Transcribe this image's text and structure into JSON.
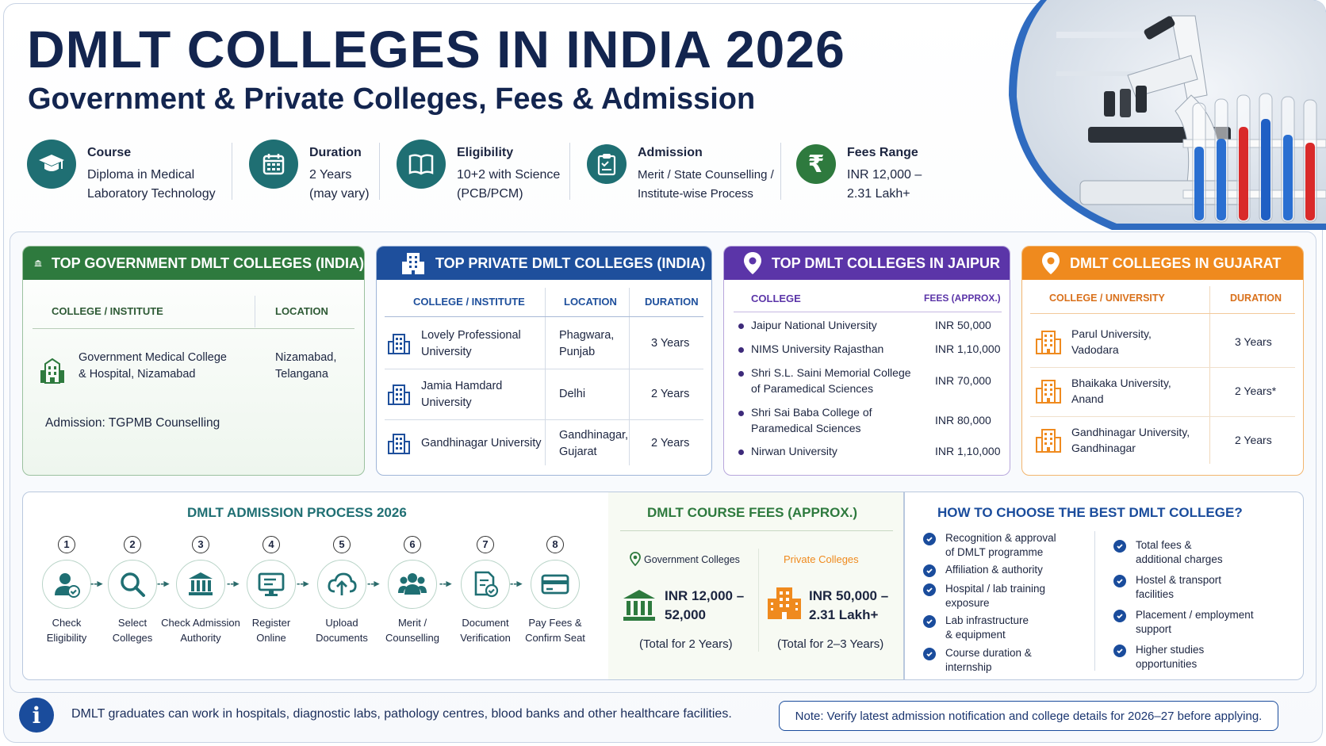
{
  "header": {
    "title": "DMLT COLLEGES IN INDIA 2026",
    "subtitle": "Government & Private Colleges, Fees & Admission"
  },
  "stats": [
    {
      "label": "Course",
      "line1": "Diploma in Medical",
      "line2": "Laboratory Technology",
      "icon": "graduation-cap-icon"
    },
    {
      "label": "Duration",
      "line1": "2 Years",
      "line2": "(may vary)",
      "icon": "calendar-icon"
    },
    {
      "label": "Eligibility",
      "line1": "10+2 with Science",
      "line2": "(PCB/PCM)",
      "icon": "book-icon"
    },
    {
      "label": "Admission",
      "line1": "Merit / State Counselling /",
      "line2": "Institute-wise Process",
      "icon": "clipboard-icon"
    },
    {
      "label": "Fees Range",
      "line1": "INR 12,000 –",
      "line2": "2.31 Lakh+",
      "icon": "rupee-icon"
    }
  ],
  "gov_card": {
    "title": "TOP GOVERNMENT DMLT COLLEGES (INDIA)",
    "col1": "COLLEGE / INSTITUTE",
    "col2": "LOCATION",
    "college_l1": "Government Medical College",
    "college_l2": "& Hospital, Nizamabad",
    "loc_l1": "Nizamabad,",
    "loc_l2": "Telangana",
    "admission": "Admission: TGPMB Counselling",
    "color": "#2e7a3e"
  },
  "private_card": {
    "title": "TOP PRIVATE DMLT COLLEGES (INDIA)",
    "col1": "COLLEGE / INSTITUTE",
    "col2": "LOCATION",
    "col3": "DURATION",
    "rows": [
      {
        "c1": "Lovely Professional",
        "c2": "University",
        "l1": "Phagwara,",
        "l2": "Punjab",
        "d": "3 Years"
      },
      {
        "c1": "Jamia Hamdard",
        "c2": "University",
        "l1": "Delhi",
        "l2": "",
        "d": "2 Years"
      },
      {
        "c1": "Gandhinagar University",
        "c2": "",
        "l1": "Gandhinagar,",
        "l2": "Gujarat",
        "d": "2 Years"
      }
    ],
    "color": "#1e4f9c"
  },
  "jaipur_card": {
    "title": "TOP DMLT COLLEGES IN JAIPUR",
    "col1": "COLLEGE",
    "col2": "FEES (APPROX.)",
    "rows": [
      {
        "n1": "Jaipur National University",
        "n2": "",
        "fee": "INR 50,000"
      },
      {
        "n1": "NIMS University Rajasthan",
        "n2": "",
        "fee": "INR 1,10,000"
      },
      {
        "n1": "Shri S.L. Saini Memorial College",
        "n2": "of Paramedical Sciences",
        "fee": "INR 70,000"
      },
      {
        "n1": "Shri Sai Baba College of",
        "n2": "Paramedical Sciences",
        "fee": "INR 80,000"
      },
      {
        "n1": "Nirwan University",
        "n2": "",
        "fee": "INR 1,10,000"
      }
    ],
    "color": "#5b35a8"
  },
  "gujarat_card": {
    "title": "DMLT COLLEGES IN GUJARAT",
    "col1": "COLLEGE / UNIVERSITY",
    "col2": "DURATION",
    "rows": [
      {
        "c1": "Parul University,",
        "c2": "Vadodara",
        "d": "3 Years"
      },
      {
        "c1": "Bhaikaka University,",
        "c2": "Anand",
        "d": "2 Years*"
      },
      {
        "c1": "Gandhinagar University,",
        "c2": "Gandhinagar",
        "d": "2 Years"
      }
    ],
    "color": "#ef8a1e"
  },
  "process": {
    "title": "DMLT ADMISSION PROCESS 2026",
    "steps": [
      {
        "n": "1",
        "l1": "Check",
        "l2": "Eligibility",
        "icon": "user-check-icon"
      },
      {
        "n": "2",
        "l1": "Select",
        "l2": "Colleges",
        "icon": "search-icon"
      },
      {
        "n": "3",
        "l1": "Check Admission",
        "l2": "Authority",
        "icon": "institution-icon"
      },
      {
        "n": "4",
        "l1": "Register",
        "l2": "Online",
        "icon": "monitor-icon"
      },
      {
        "n": "5",
        "l1": "Upload",
        "l2": "Documents",
        "icon": "cloud-upload-icon"
      },
      {
        "n": "6",
        "l1": "Merit /",
        "l2": "Counselling",
        "icon": "group-icon"
      },
      {
        "n": "7",
        "l1": "Document",
        "l2": "Verification",
        "icon": "document-check-icon"
      },
      {
        "n": "8",
        "l1": "Pay Fees &",
        "l2": "Confirm Seat",
        "icon": "card-icon"
      }
    ]
  },
  "fees": {
    "title": "DMLT COURSE FEES (APPROX.)",
    "gov_label": "Government Colleges",
    "gov_l1": "INR 12,000 –",
    "gov_l2": "52,000",
    "gov_note": "(Total for 2 Years)",
    "pvt_label": "Private Colleges",
    "pvt_l1": "INR 50,000 –",
    "pvt_l2": "2.31 Lakh+",
    "pvt_note": "(Total for 2–3 Years)"
  },
  "choose": {
    "title": "HOW TO CHOOSE THE BEST DMLT COLLEGE?",
    "left": [
      {
        "l1": "Recognition & approval",
        "l2": "of DMLT programme"
      },
      {
        "l1": "Affiliation & authority",
        "l2": ""
      },
      {
        "l1": "Hospital / lab training",
        "l2": "exposure"
      },
      {
        "l1": "Lab infrastructure",
        "l2": "& equipment"
      },
      {
        "l1": "Course duration &",
        "l2": "internship"
      }
    ],
    "right": [
      {
        "l1": "Total fees &",
        "l2": "additional charges"
      },
      {
        "l1": "Hostel & transport",
        "l2": "facilities"
      },
      {
        "l1": "Placement / employment",
        "l2": "support"
      },
      {
        "l1": "Higher studies",
        "l2": "opportunities"
      }
    ]
  },
  "footer": {
    "info": "DMLT graduates can work in hospitals, diagnostic labs, pathology centres, blood banks and other healthcare facilities.",
    "note": "Note: Verify latest admission notification and college details for 2026–27 before applying."
  }
}
